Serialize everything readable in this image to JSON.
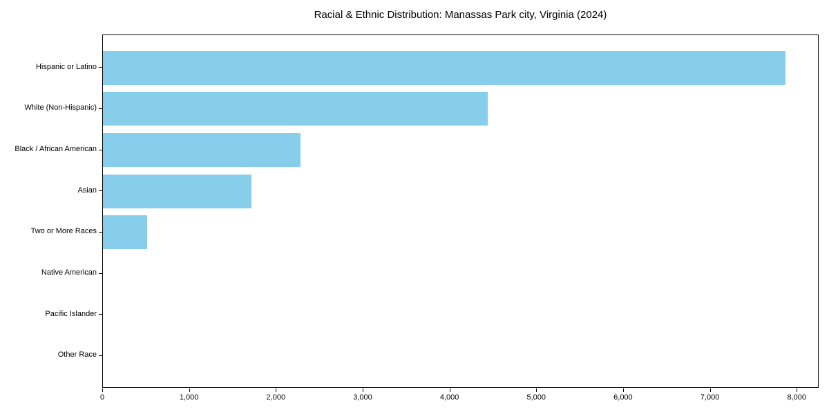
{
  "chart_data": {
    "type": "bar",
    "orientation": "horizontal",
    "title": "Racial & Ethnic Distribution: Manassas Park city, Virginia (2024)",
    "categories": [
      "Hispanic or Latino",
      "White (Non-Hispanic)",
      "Black / African American",
      "Asian",
      "Two or More Races",
      "Native American",
      "Pacific Islander",
      "Other Race"
    ],
    "values": [
      7860,
      4430,
      2280,
      1710,
      510,
      0,
      0,
      0
    ],
    "xlabel": "",
    "ylabel": "",
    "xlim": [
      0,
      8253
    ],
    "xticks": [
      0,
      1000,
      2000,
      3000,
      4000,
      5000,
      6000,
      7000,
      8000
    ],
    "xtick_labels": [
      "0",
      "1,000",
      "2,000",
      "3,000",
      "4,000",
      "5,000",
      "6,000",
      "7,000",
      "8,000"
    ],
    "bar_color": "#87CEEB",
    "grid": false,
    "legend": null
  }
}
